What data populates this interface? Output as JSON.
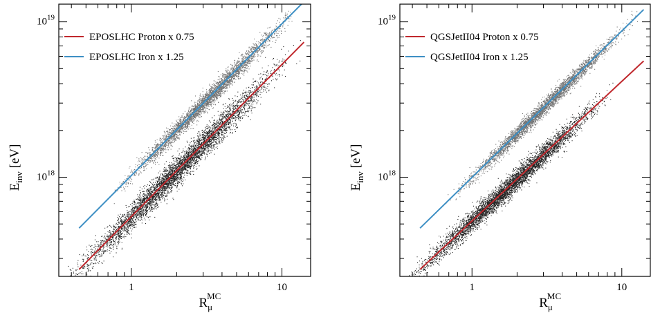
{
  "chart_data": [
    {
      "type": "scatter",
      "xscale": "log",
      "yscale": "log",
      "xlim": [
        0.33,
        15.5
      ],
      "ylim": [
        2.3e+17,
        1.3e+19
      ],
      "xticks": [
        {
          "value": 1,
          "label": "1"
        },
        {
          "value": 10,
          "label": "10"
        }
      ],
      "yticks": [
        {
          "value": 1e+18,
          "base": "10",
          "exp": "18"
        },
        {
          "value": 1e+19,
          "base": "10",
          "exp": "19"
        }
      ],
      "xlabel": {
        "base": "R",
        "sub": "μ",
        "sup": "MC"
      },
      "ylabel": {
        "base": "E",
        "sub": "inv",
        "rest": " [eV]"
      },
      "grid": false,
      "legend_position": "top-left",
      "series": [
        {
          "name": "EPOSLHC Proton x 0.75",
          "color": "#c0282d",
          "line": [
            [
              0.45,
              2.55e+17
            ],
            [
              14.0,
              7.4e+18
            ]
          ],
          "scatter_x_range": [
            0.3,
            14.0
          ],
          "scatter_spread_dex": 0.045
        },
        {
          "name": "EPOSLHC Iron x 1.25",
          "color": "#3d8fc4",
          "line": [
            [
              0.45,
              4.7e+17
            ],
            [
              14.0,
              1.35e+19
            ]
          ],
          "scatter_x_range": [
            0.68,
            14.0
          ],
          "scatter_spread_dex": 0.03
        }
      ]
    },
    {
      "type": "scatter",
      "xscale": "log",
      "yscale": "log",
      "xlim": [
        0.33,
        15.5
      ],
      "ylim": [
        2.3e+17,
        1.3e+19
      ],
      "xticks": [
        {
          "value": 1,
          "label": "1"
        },
        {
          "value": 10,
          "label": "10"
        }
      ],
      "yticks": [
        {
          "value": 1e+18,
          "base": "10",
          "exp": "18"
        },
        {
          "value": 1e+19,
          "base": "10",
          "exp": "19"
        }
      ],
      "xlabel": {
        "base": "R",
        "sub": "μ",
        "sup": "MC"
      },
      "ylabel": {
        "base": "E",
        "sub": "inv",
        "rest": " [eV]"
      },
      "grid": false,
      "legend_position": "top-left",
      "series": [
        {
          "name": "QGSJetII04 Proton x 0.75",
          "color": "#c0282d",
          "line": [
            [
              0.45,
              2.55e+17
            ],
            [
              14.0,
              5.6e+18
            ]
          ],
          "scatter_x_range": [
            0.3,
            10.0
          ],
          "scatter_spread_dex": 0.035
        },
        {
          "name": "QGSJetII04 Iron x 1.25",
          "color": "#3d8fc4",
          "line": [
            [
              0.45,
              4.7e+17
            ],
            [
              14.0,
              1.2e+19
            ]
          ],
          "scatter_x_range": [
            0.62,
            14.0
          ],
          "scatter_spread_dex": 0.025
        }
      ]
    }
  ]
}
